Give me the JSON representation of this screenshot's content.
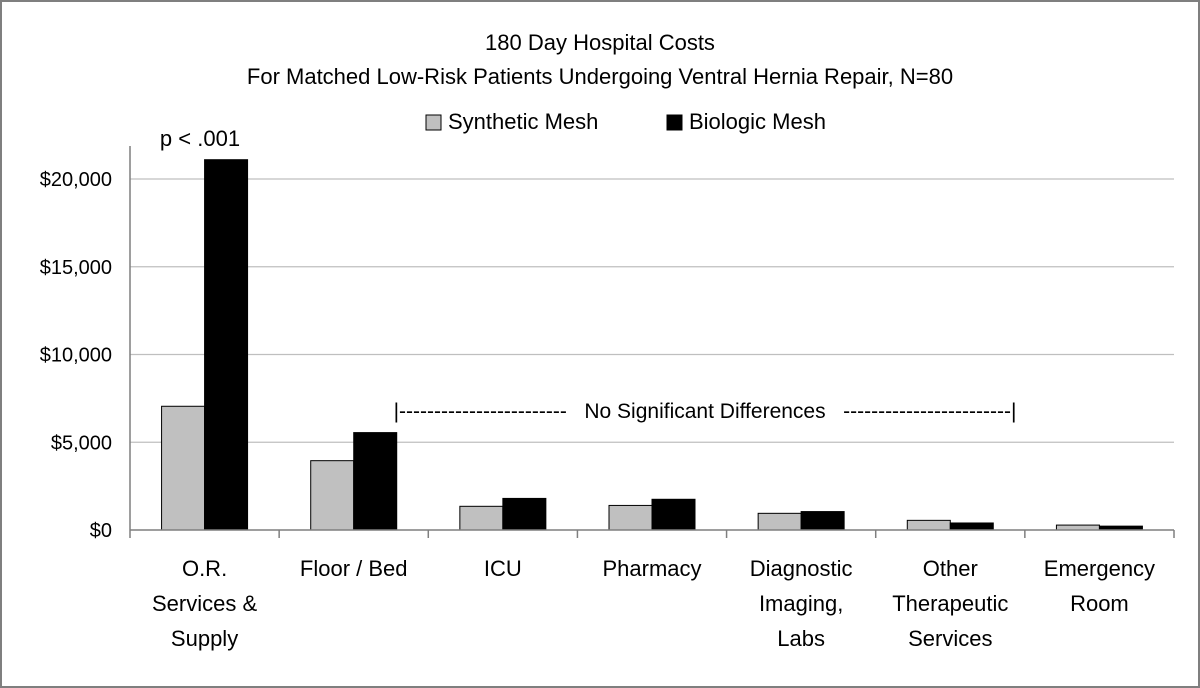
{
  "chart_data": {
    "type": "bar",
    "title": "180 Day Hospital Costs",
    "subtitle": "For Matched Low-Risk Patients Undergoing Ventral Hernia Repair, N=80",
    "categories": [
      [
        "O.R.",
        "Services &",
        "Supply"
      ],
      [
        "Floor / Bed"
      ],
      [
        "ICU"
      ],
      [
        "Pharmacy"
      ],
      [
        "Diagnostic",
        "Imaging,",
        "Labs"
      ],
      [
        "Other",
        "Therapeutic",
        "Services"
      ],
      [
        "Emergency",
        "Room"
      ]
    ],
    "series": [
      {
        "name": "Synthetic Mesh",
        "color": "#c0c0c0",
        "values": [
          7050,
          3950,
          1350,
          1400,
          950,
          550,
          280
        ]
      },
      {
        "name": "Biologic Mesh",
        "color": "#000000",
        "values": [
          21100,
          5550,
          1800,
          1750,
          1050,
          400,
          220
        ]
      }
    ],
    "ylim": [
      0,
      22000
    ],
    "yticks": [
      0,
      5000,
      10000,
      15000,
      20000
    ],
    "ytick_labels": [
      "$0",
      "$5,000",
      "$10,000",
      "$15,000",
      "$20,000"
    ],
    "grid": true,
    "legend_position": "top-center",
    "annotations": {
      "significance": "p < .001",
      "no_difference": "|------------------------   No Significant Differences   ------------------------|"
    }
  }
}
